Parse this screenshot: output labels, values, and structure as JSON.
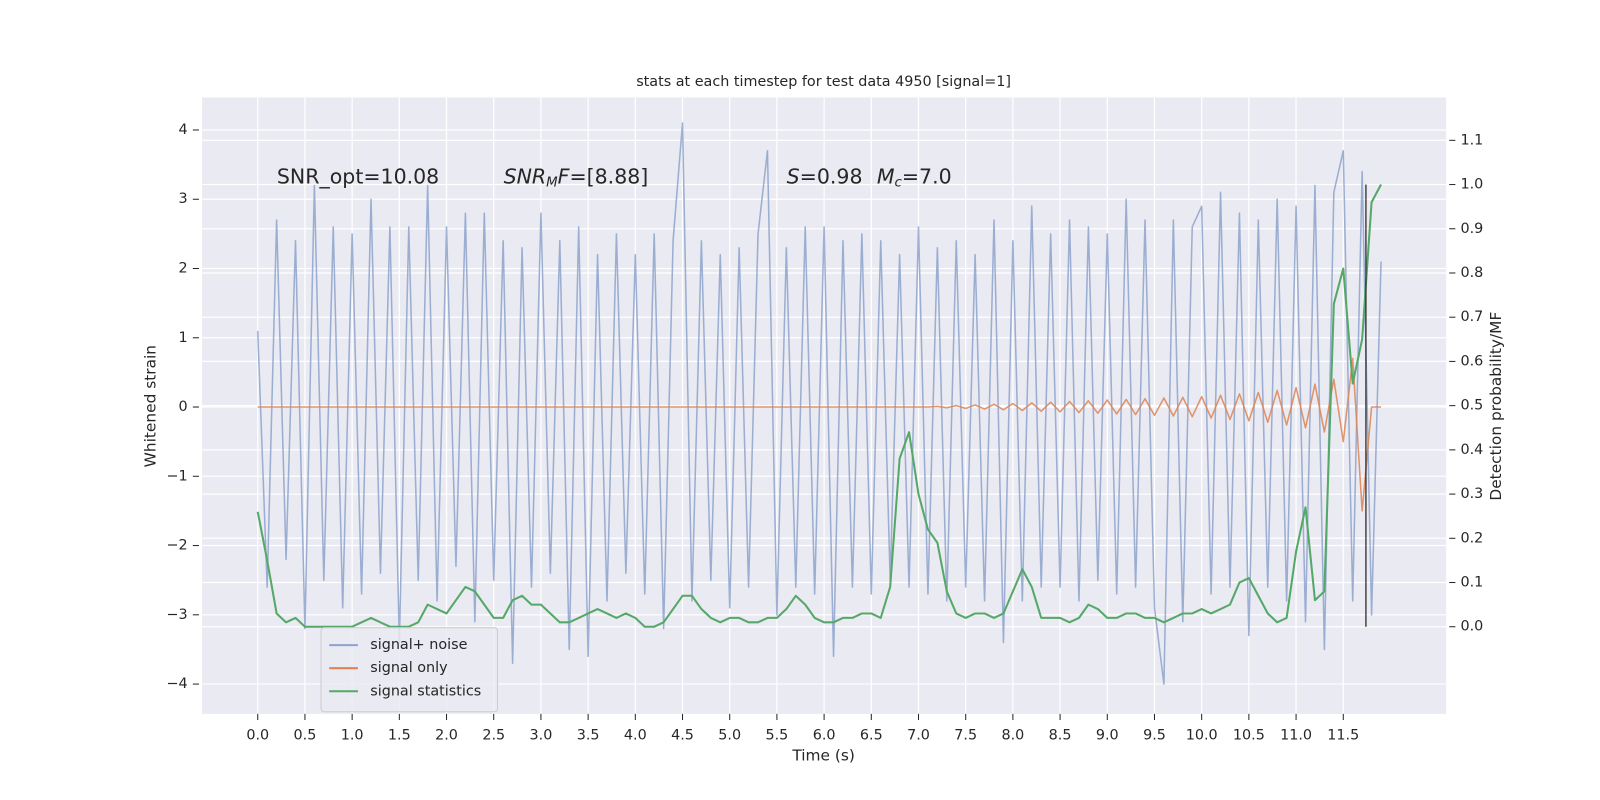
{
  "chart_data": {
    "type": "line",
    "title": "stats at each timestep for test data 4950 [signal=1]",
    "xlabel": "Time (s)",
    "ylabel": "Whitened strain",
    "y2label": "Detection probability/MF",
    "annotations": [
      [
        "SNR_opt=10.08"
      ],
      [
        "SNR",
        "M",
        "F",
        "=[8.88]"
      ],
      [
        "S",
        "=0.98",
        "M",
        "c",
        "=7.0"
      ]
    ],
    "xlim": [
      -0.59,
      12.59
    ],
    "ylim": [
      -4.43,
      4.47
    ],
    "y2lim": [
      -0.197,
      1.197
    ],
    "xticks": [
      {
        "value": 0,
        "label": "0.0"
      },
      0.5,
      {
        "value": 1,
        "label": "1.0"
      },
      1.5,
      {
        "value": 2,
        "label": "2.0"
      },
      2.5,
      {
        "value": 3,
        "label": "3.0"
      },
      3.5,
      {
        "value": 4,
        "label": "4.0"
      },
      4.5,
      {
        "value": 5,
        "label": "5.0"
      },
      5.5,
      {
        "value": 6,
        "label": "6.0"
      },
      6.5,
      {
        "value": 7,
        "label": "7.0"
      },
      7.5,
      {
        "value": 8,
        "label": "8.0"
      },
      8.5,
      {
        "value": 9,
        "label": "9.0"
      },
      9.5,
      {
        "value": 10,
        "label": "10.0"
      },
      10.5,
      {
        "value": 11,
        "label": "11.0"
      },
      11.5
    ],
    "yticks": [
      {
        "value": -4,
        "label": "−4"
      },
      {
        "value": -3,
        "label": "−3"
      },
      {
        "value": -2,
        "label": "−2"
      },
      {
        "value": -1,
        "label": "−1"
      },
      0,
      1,
      2,
      3,
      4
    ],
    "y2ticks": [
      {
        "value": 0,
        "label": "0.0"
      },
      0.1,
      0.2,
      0.3,
      0.4,
      0.5,
      0.6,
      0.7,
      0.8,
      0.9,
      {
        "value": 1,
        "label": "1.0"
      },
      1.1
    ],
    "grid": true,
    "legend": "lower left",
    "vline_x": 11.74,
    "x": [
      0.0,
      0.1,
      0.2,
      0.3,
      0.4,
      0.5,
      0.6,
      0.7,
      0.8,
      0.9,
      1.0,
      1.1,
      1.2,
      1.3,
      1.4,
      1.5,
      1.6,
      1.7,
      1.8,
      1.9,
      2.0,
      2.1,
      2.2,
      2.3,
      2.4,
      2.5,
      2.6,
      2.7,
      2.8,
      2.9,
      3.0,
      3.1,
      3.2,
      3.3,
      3.4,
      3.5,
      3.6,
      3.7,
      3.8,
      3.9,
      4.0,
      4.1,
      4.2,
      4.3,
      4.4,
      4.5,
      4.6,
      4.7,
      4.8,
      4.9,
      5.0,
      5.1,
      5.2,
      5.3,
      5.4,
      5.5,
      5.6,
      5.7,
      5.8,
      5.9,
      6.0,
      6.1,
      6.2,
      6.3,
      6.4,
      6.5,
      6.6,
      6.7,
      6.8,
      6.9,
      7.0,
      7.1,
      7.2,
      7.3,
      7.4,
      7.5,
      7.6,
      7.7,
      7.8,
      7.9,
      8.0,
      8.1,
      8.2,
      8.3,
      8.4,
      8.5,
      8.6,
      8.7,
      8.8,
      8.9,
      9.0,
      9.1,
      9.2,
      9.3,
      9.4,
      9.5,
      9.6,
      9.7,
      9.8,
      9.9,
      10.0,
      10.1,
      10.2,
      10.3,
      10.4,
      10.5,
      10.6,
      10.7,
      10.8,
      10.9,
      11.0,
      11.1,
      11.2,
      11.3,
      11.4,
      11.5,
      11.6,
      11.7,
      11.8,
      11.9
    ],
    "series": [
      {
        "name": "signal+ noise",
        "color": "#8da3cc",
        "axis": "y",
        "values": [
          1.1,
          -2.6,
          2.7,
          -2.2,
          2.4,
          -3.2,
          3.2,
          -2.5,
          2.6,
          -2.9,
          2.5,
          -2.7,
          3.0,
          -2.4,
          2.6,
          -3.4,
          2.6,
          -2.5,
          3.2,
          -2.8,
          2.6,
          -2.3,
          2.8,
          -3.1,
          2.8,
          -2.5,
          2.4,
          -3.7,
          2.3,
          -2.6,
          2.8,
          -2.4,
          2.4,
          -3.5,
          2.6,
          -3.6,
          2.2,
          -2.8,
          2.5,
          -2.4,
          2.2,
          -2.7,
          2.5,
          -3.2,
          2.4,
          4.1,
          -2.8,
          2.4,
          -2.5,
          2.2,
          -2.9,
          2.3,
          -2.6,
          2.5,
          3.7,
          -3.0,
          2.3,
          -2.6,
          2.6,
          -2.7,
          2.6,
          -3.6,
          2.4,
          -2.6,
          2.5,
          -2.7,
          2.4,
          -2.5,
          2.2,
          -2.6,
          2.6,
          -2.7,
          2.3,
          -2.8,
          2.4,
          -2.6,
          2.2,
          -2.8,
          2.7,
          -3.4,
          2.4,
          -2.8,
          2.9,
          -2.6,
          2.5,
          -2.6,
          2.7,
          -2.8,
          2.6,
          -2.5,
          2.5,
          -2.7,
          3.0,
          -2.6,
          2.7,
          -2.9,
          -4.0,
          2.7,
          -3.1,
          2.6,
          2.9,
          -2.7,
          3.1,
          -2.6,
          2.8,
          -3.3,
          2.7,
          -2.6,
          3.0,
          -2.8,
          2.9,
          -3.1,
          3.2,
          -3.5,
          3.1,
          3.7,
          -2.8,
          3.4,
          -3.0,
          2.1
        ]
      },
      {
        "name": "signal only",
        "color": "#dd8452",
        "axis": "y",
        "values": [
          0,
          0,
          0,
          0,
          0,
          0,
          0,
          0,
          0,
          0,
          0,
          0,
          0,
          0,
          0,
          0,
          0,
          0,
          0,
          0,
          0,
          0,
          0,
          0,
          0,
          0,
          0,
          0,
          0,
          0,
          0,
          0,
          0,
          0,
          0,
          0,
          0,
          0,
          0,
          0,
          0,
          0,
          0,
          0,
          0,
          0,
          0,
          0,
          0,
          0,
          0,
          0,
          0,
          0,
          0,
          0,
          0,
          0,
          0,
          0,
          0,
          0,
          0,
          0,
          0,
          0,
          0,
          0,
          0,
          0,
          0,
          0,
          0.01,
          -0.01,
          0.02,
          -0.02,
          0.03,
          -0.03,
          0.04,
          -0.04,
          0.05,
          -0.05,
          0.06,
          -0.06,
          0.07,
          -0.07,
          0.08,
          -0.08,
          0.09,
          -0.09,
          0.1,
          -0.1,
          0.11,
          -0.11,
          0.12,
          -0.12,
          0.13,
          -0.13,
          0.14,
          -0.14,
          0.15,
          -0.16,
          0.17,
          -0.18,
          0.19,
          -0.2,
          0.21,
          -0.22,
          0.24,
          -0.26,
          0.28,
          -0.3,
          0.33,
          -0.36,
          0.4,
          -0.5,
          0.7,
          -1.5,
          0,
          0
        ]
      },
      {
        "name": "signal statistics",
        "color": "#55a868",
        "axis": "y2",
        "values": [
          0.26,
          0.15,
          0.03,
          0.01,
          0.02,
          0.0,
          0.0,
          0.0,
          0.0,
          0.0,
          0.0,
          0.01,
          0.02,
          0.01,
          0.0,
          0.0,
          0.0,
          0.01,
          0.05,
          0.04,
          0.03,
          0.06,
          0.09,
          0.08,
          0.05,
          0.02,
          0.02,
          0.06,
          0.07,
          0.05,
          0.05,
          0.03,
          0.01,
          0.01,
          0.02,
          0.03,
          0.04,
          0.03,
          0.02,
          0.03,
          0.02,
          0.0,
          0.0,
          0.01,
          0.04,
          0.07,
          0.07,
          0.04,
          0.02,
          0.01,
          0.02,
          0.02,
          0.01,
          0.01,
          0.02,
          0.02,
          0.04,
          0.07,
          0.05,
          0.02,
          0.01,
          0.01,
          0.02,
          0.02,
          0.03,
          0.03,
          0.02,
          0.09,
          0.38,
          0.44,
          0.3,
          0.22,
          0.19,
          0.08,
          0.03,
          0.02,
          0.03,
          0.03,
          0.02,
          0.03,
          0.08,
          0.13,
          0.09,
          0.02,
          0.02,
          0.02,
          0.01,
          0.02,
          0.05,
          0.04,
          0.02,
          0.02,
          0.03,
          0.03,
          0.02,
          0.02,
          0.01,
          0.02,
          0.03,
          0.03,
          0.04,
          0.03,
          0.04,
          0.05,
          0.1,
          0.11,
          0.07,
          0.03,
          0.01,
          0.02,
          0.17,
          0.27,
          0.06,
          0.08,
          0.73,
          0.81,
          0.55,
          0.65,
          0.96,
          1.0
        ]
      }
    ]
  }
}
